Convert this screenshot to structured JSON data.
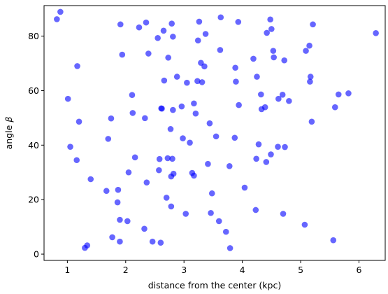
{
  "chart_data": {
    "type": "scatter",
    "xlabel": "distance from the center (kpc)",
    "ylabel_text": "angle",
    "ylabel_symbol": "β",
    "xlim": [
      0.6,
      6.45
    ],
    "ylim": [
      -2.3,
      91.2
    ],
    "xticks": [
      1,
      2,
      3,
      4,
      5,
      6
    ],
    "yticks": [
      0,
      20,
      40,
      60,
      80
    ],
    "grid": false,
    "point_color": "#0000ff",
    "point_opacity": 0.6,
    "points": [
      [
        0.82,
        86.2
      ],
      [
        0.88,
        88.9
      ],
      [
        1.01,
        57.0
      ],
      [
        1.05,
        39.4
      ],
      [
        1.16,
        34.5
      ],
      [
        1.17,
        69.0
      ],
      [
        1.2,
        48.6
      ],
      [
        1.3,
        2.3
      ],
      [
        1.34,
        3.2
      ],
      [
        1.4,
        27.5
      ],
      [
        1.67,
        23.2
      ],
      [
        1.7,
        42.3
      ],
      [
        1.75,
        49.8
      ],
      [
        1.77,
        6.2
      ],
      [
        1.86,
        19.0
      ],
      [
        1.87,
        23.6
      ],
      [
        1.9,
        12.6
      ],
      [
        1.9,
        4.6
      ],
      [
        1.91,
        84.3
      ],
      [
        1.94,
        73.2
      ],
      [
        2.03,
        12.1
      ],
      [
        2.05,
        30.0
      ],
      [
        2.11,
        58.4
      ],
      [
        2.12,
        51.8
      ],
      [
        2.16,
        35.5
      ],
      [
        2.23,
        83.2
      ],
      [
        2.32,
        9.3
      ],
      [
        2.33,
        49.9
      ],
      [
        2.35,
        85.0
      ],
      [
        2.36,
        26.3
      ],
      [
        2.39,
        73.6
      ],
      [
        2.46,
        4.6
      ],
      [
        2.55,
        79.3
      ],
      [
        2.57,
        30.8
      ],
      [
        2.58,
        34.9
      ],
      [
        2.6,
        4.2
      ],
      [
        2.61,
        53.5
      ],
      [
        2.62,
        53.4
      ],
      [
        2.65,
        82.0
      ],
      [
        2.66,
        63.7
      ],
      [
        2.7,
        20.7
      ],
      [
        2.72,
        35.2
      ],
      [
        2.73,
        72.1
      ],
      [
        2.77,
        45.9
      ],
      [
        2.78,
        28.5
      ],
      [
        2.78,
        17.5
      ],
      [
        2.79,
        84.6
      ],
      [
        2.8,
        35.0
      ],
      [
        2.81,
        79.8
      ],
      [
        2.81,
        52.9
      ],
      [
        2.82,
        29.5
      ],
      [
        2.88,
        65.1
      ],
      [
        2.96,
        54.2
      ],
      [
        2.98,
        42.5
      ],
      [
        3.03,
        14.8
      ],
      [
        3.05,
        62.9
      ],
      [
        3.1,
        40.9
      ],
      [
        3.14,
        29.8
      ],
      [
        3.17,
        28.8
      ],
      [
        3.17,
        55.3
      ],
      [
        3.2,
        51.6
      ],
      [
        3.23,
        63.5
      ],
      [
        3.24,
        78.4
      ],
      [
        3.26,
        85.3
      ],
      [
        3.29,
        70.2
      ],
      [
        3.31,
        63.1
      ],
      [
        3.35,
        68.9
      ],
      [
        3.37,
        80.8
      ],
      [
        3.41,
        33.1
      ],
      [
        3.44,
        48.0
      ],
      [
        3.46,
        15.1
      ],
      [
        3.48,
        22.3
      ],
      [
        3.55,
        43.2
      ],
      [
        3.6,
        12.1
      ],
      [
        3.62,
        74.9
      ],
      [
        3.63,
        86.9
      ],
      [
        3.72,
        8.2
      ],
      [
        3.78,
        32.3
      ],
      [
        3.79,
        2.2
      ],
      [
        3.87,
        42.7
      ],
      [
        3.88,
        68.4
      ],
      [
        3.89,
        63.3
      ],
      [
        3.93,
        85.2
      ],
      [
        3.94,
        54.7
      ],
      [
        4.04,
        24.4
      ],
      [
        4.19,
        71.7
      ],
      [
        4.23,
        16.2
      ],
      [
        4.24,
        35.0
      ],
      [
        4.25,
        65.1
      ],
      [
        4.28,
        40.3
      ],
      [
        4.32,
        58.6
      ],
      [
        4.33,
        53.2
      ],
      [
        4.39,
        53.9
      ],
      [
        4.41,
        33.8
      ],
      [
        4.42,
        81.2
      ],
      [
        4.48,
        86.1
      ],
      [
        4.49,
        36.6
      ],
      [
        4.5,
        82.6
      ],
      [
        4.53,
        74.6
      ],
      [
        4.54,
        72.2
      ],
      [
        4.61,
        39.4
      ],
      [
        4.62,
        57.0
      ],
      [
        4.69,
        58.5
      ],
      [
        4.7,
        14.8
      ],
      [
        4.72,
        71.1
      ],
      [
        4.73,
        39.3
      ],
      [
        4.8,
        56.2
      ],
      [
        5.07,
        10.8
      ],
      [
        5.09,
        74.6
      ],
      [
        5.15,
        76.5
      ],
      [
        5.16,
        63.3
      ],
      [
        5.17,
        65.1
      ],
      [
        5.19,
        48.6
      ],
      [
        5.21,
        84.3
      ],
      [
        5.56,
        5.1
      ],
      [
        5.59,
        53.9
      ],
      [
        5.65,
        58.6
      ],
      [
        5.82,
        59.0
      ],
      [
        6.29,
        81.1
      ]
    ]
  }
}
